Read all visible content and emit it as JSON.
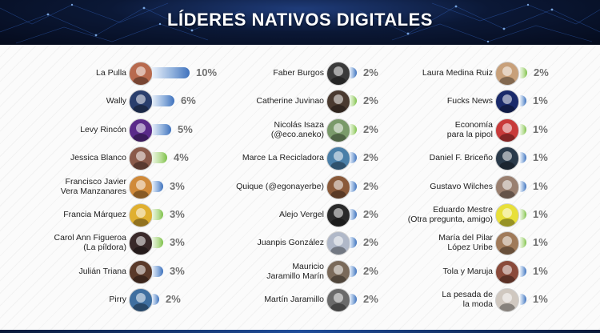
{
  "title": "LÍDERES NATIVOS DIGITALES",
  "colors": {
    "bar_blue": "#3f72bd",
    "bar_green": "#7cc049",
    "header_bg": "#0b1836"
  },
  "chart_data": {
    "type": "bar",
    "orientation": "horizontal",
    "unit": "%",
    "columns": [
      {
        "items": [
          {
            "name": "La Pulla",
            "value": 10,
            "label": "10%",
            "color": "blue",
            "avatar": "#b86a4e"
          },
          {
            "name": "Wally",
            "value": 6,
            "label": "6%",
            "color": "blue",
            "avatar": "#2a3f6d"
          },
          {
            "name": "Levy Rincón",
            "value": 5,
            "label": "5%",
            "color": "blue",
            "avatar": "#5a2a8a"
          },
          {
            "name": "Jessica Blanco",
            "value": 4,
            "label": "4%",
            "color": "green",
            "avatar": "#8a5a4a"
          },
          {
            "name": "Francisco Javier\nVera Manzanares",
            "value": 3,
            "label": "3%",
            "color": "blue",
            "avatar": "#d08a3a"
          },
          {
            "name": "Francia Márquez",
            "value": 3,
            "label": "3%",
            "color": "green",
            "avatar": "#e0b030"
          },
          {
            "name": "Carol Ann Figueroa\n(La píldora)",
            "value": 3,
            "label": "3%",
            "color": "green",
            "avatar": "#3a2a2a"
          },
          {
            "name": "Julián Triana",
            "value": 3,
            "label": "3%",
            "color": "blue",
            "avatar": "#5a3a2a"
          },
          {
            "name": "Pirry",
            "value": 2,
            "label": "2%",
            "color": "blue",
            "avatar": "#3f6fa0"
          }
        ]
      },
      {
        "items": [
          {
            "name": "Faber Burgos",
            "value": 2,
            "label": "2%",
            "color": "blue",
            "avatar": "#3a3a3a"
          },
          {
            "name": "Catherine Juvinao",
            "value": 2,
            "label": "2%",
            "color": "green",
            "avatar": "#4a3a30"
          },
          {
            "name": "Nicolás Isaza\n(@eco.aneko)",
            "value": 2,
            "label": "2%",
            "color": "green",
            "avatar": "#7a9a6a"
          },
          {
            "name": "Marce La Recicladora",
            "value": 2,
            "label": "2%",
            "color": "blue",
            "avatar": "#4a7fa8"
          },
          {
            "name": "Quique (@egonayerbe)",
            "value": 2,
            "label": "2%",
            "color": "blue",
            "avatar": "#8a5a3a"
          },
          {
            "name": "Alejo Vergel",
            "value": 2,
            "label": "2%",
            "color": "blue",
            "avatar": "#2a2a2a"
          },
          {
            "name": "Juanpis González",
            "value": 2,
            "label": "2%",
            "color": "blue",
            "avatar": "#b0b8c8"
          },
          {
            "name": "Mauricio\nJaramillo Marín",
            "value": 2,
            "label": "2%",
            "color": "blue",
            "avatar": "#7a6a5a"
          },
          {
            "name": "Martín Jaramillo",
            "value": 2,
            "label": "2%",
            "color": "blue",
            "avatar": "#6a6a6a"
          }
        ]
      },
      {
        "items": [
          {
            "name": "Laura Medina Ruiz",
            "value": 2,
            "label": "2%",
            "color": "green",
            "avatar": "#c8a07a"
          },
          {
            "name": "Fucks News",
            "value": 1,
            "label": "1%",
            "color": "blue",
            "avatar": "#1a2a6a"
          },
          {
            "name": "Economía\npara la pipol",
            "value": 1,
            "label": "1%",
            "color": "green",
            "avatar": "#c83a3a"
          },
          {
            "name": "Daniel F. Briceño",
            "value": 1,
            "label": "1%",
            "color": "blue",
            "avatar": "#2a3a4a"
          },
          {
            "name": "Gustavo Wilches",
            "value": 1,
            "label": "1%",
            "color": "blue",
            "avatar": "#9a8070"
          },
          {
            "name": "Eduardo Mestre\n(Otra pregunta, amigo)",
            "value": 1,
            "label": "1%",
            "color": "green",
            "avatar": "#e8e03a"
          },
          {
            "name": "María del Pilar\nLópez Uribe",
            "value": 1,
            "label": "1%",
            "color": "green",
            "avatar": "#a07a5a"
          },
          {
            "name": "Tola y Maruja",
            "value": 1,
            "label": "1%",
            "color": "blue",
            "avatar": "#8a4a3a"
          },
          {
            "name": "La pesada de\nla moda",
            "value": 1,
            "label": "1%",
            "color": "blue",
            "avatar": "#d0c8c0"
          }
        ]
      }
    ]
  }
}
